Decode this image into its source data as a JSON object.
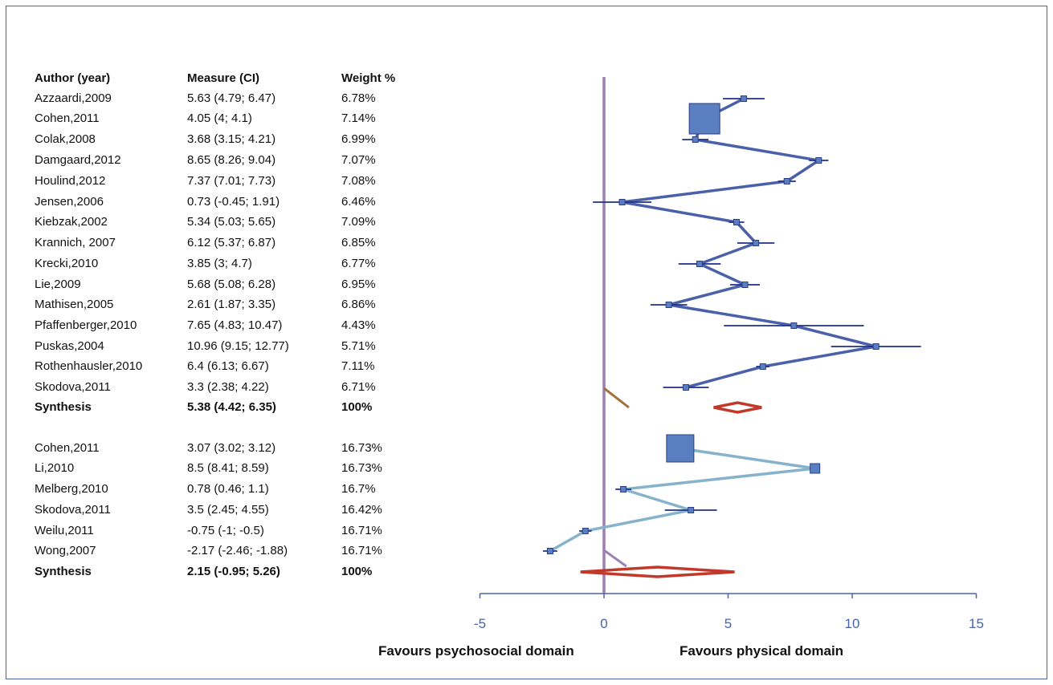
{
  "chart_data": {
    "type": "forest",
    "columns": [
      "Author (year)",
      "Measure (CI)",
      "Weight %"
    ],
    "groups": [
      {
        "studies": [
          {
            "author": "Azzaardi,2009",
            "measure": "5.63 (4.79; 6.47)",
            "weight": "6.78%",
            "est": 5.63,
            "lo": 4.79,
            "hi": 6.47,
            "w": 6.78
          },
          {
            "author": "Cohen,2011",
            "measure": "4.05 (4; 4.1)",
            "weight": "7.14%",
            "est": 4.05,
            "lo": 4,
            "hi": 4.1,
            "w": 7.14
          },
          {
            "author": "Colak,2008",
            "measure": "3.68 (3.15; 4.21)",
            "weight": "6.99%",
            "est": 3.68,
            "lo": 3.15,
            "hi": 4.21,
            "w": 6.99
          },
          {
            "author": "Damgaard,2012",
            "measure": "8.65 (8.26; 9.04)",
            "weight": "7.07%",
            "est": 8.65,
            "lo": 8.26,
            "hi": 9.04,
            "w": 7.07
          },
          {
            "author": "Houlind,2012",
            "measure": "7.37 (7.01; 7.73)",
            "weight": "7.08%",
            "est": 7.37,
            "lo": 7.01,
            "hi": 7.73,
            "w": 7.08
          },
          {
            "author": "Jensen,2006",
            "measure": "0.73 (-0.45; 1.91)",
            "weight": "6.46%",
            "est": 0.73,
            "lo": -0.45,
            "hi": 1.91,
            "w": 6.46
          },
          {
            "author": "Kiebzak,2002",
            "measure": "5.34 (5.03; 5.65)",
            "weight": "7.09%",
            "est": 5.34,
            "lo": 5.03,
            "hi": 5.65,
            "w": 7.09
          },
          {
            "author": "Krannich, 2007",
            "measure": "6.12 (5.37; 6.87)",
            "weight": "6.85%",
            "est": 6.12,
            "lo": 5.37,
            "hi": 6.87,
            "w": 6.85
          },
          {
            "author": "Krecki,2010",
            "measure": "3.85 (3; 4.7)",
            "weight": "6.77%",
            "est": 3.85,
            "lo": 3,
            "hi": 4.7,
            "w": 6.77
          },
          {
            "author": "Lie,2009",
            "measure": "5.68 (5.08; 6.28)",
            "weight": "6.95%",
            "est": 5.68,
            "lo": 5.08,
            "hi": 6.28,
            "w": 6.95
          },
          {
            "author": "Mathisen,2005",
            "measure": "2.61 (1.87; 3.35)",
            "weight": "6.86%",
            "est": 2.61,
            "lo": 1.87,
            "hi": 3.35,
            "w": 6.86
          },
          {
            "author": "Pfaffenberger,2010",
            "measure": "7.65 (4.83; 10.47)",
            "weight": "4.43%",
            "est": 7.65,
            "lo": 4.83,
            "hi": 10.47,
            "w": 4.43
          },
          {
            "author": "Puskas,2004",
            "measure": "10.96 (9.15; 12.77)",
            "weight": "5.71%",
            "est": 10.96,
            "lo": 9.15,
            "hi": 12.77,
            "w": 5.71
          },
          {
            "author": "Rothenhausler,2010",
            "measure": "6.4 (6.13; 6.67)",
            "weight": "7.11%",
            "est": 6.4,
            "lo": 6.13,
            "hi": 6.67,
            "w": 7.11
          },
          {
            "author": "Skodova,2011",
            "measure": "3.3 (2.38; 4.22)",
            "weight": "6.71%",
            "est": 3.3,
            "lo": 2.38,
            "hi": 4.22,
            "w": 6.71
          }
        ],
        "synthesis": {
          "author": "Synthesis",
          "measure": "5.38 (4.42; 6.35)",
          "weight": "100%",
          "est": 5.38,
          "lo": 4.42,
          "hi": 6.35
        }
      },
      {
        "studies": [
          {
            "author": "Cohen,2011",
            "measure": "3.07 (3.02; 3.12)",
            "weight": "16.73%",
            "est": 3.07,
            "lo": 3.02,
            "hi": 3.12,
            "w": 16.73
          },
          {
            "author": "Li,2010",
            "measure": "8.5 (8.41; 8.59)",
            "weight": "16.73%",
            "est": 8.5,
            "lo": 8.41,
            "hi": 8.59,
            "w": 16.73
          },
          {
            "author": "Melberg,2010",
            "measure": "0.78 (0.46; 1.1)",
            "weight": "16.7%",
            "est": 0.78,
            "lo": 0.46,
            "hi": 1.1,
            "w": 16.7
          },
          {
            "author": "Skodova,2011",
            "measure": "3.5 (2.45; 4.55)",
            "weight": "16.42%",
            "est": 3.5,
            "lo": 2.45,
            "hi": 4.55,
            "w": 16.42
          },
          {
            "author": "Weilu,2011",
            "measure": "-0.75 (-1; -0.5)",
            "weight": "16.71%",
            "est": -0.75,
            "lo": -1,
            "hi": -0.5,
            "w": 16.71
          },
          {
            "author": "Wong,2007",
            "measure": "-2.17 (-2.46; -1.88)",
            "weight": "16.71%",
            "est": -2.17,
            "lo": -2.46,
            "hi": -1.88,
            "w": 16.71
          }
        ],
        "synthesis": {
          "author": "Synthesis",
          "measure": "2.15 (-0.95; 5.26)",
          "weight": "100%",
          "est": 2.15,
          "lo": -0.95,
          "hi": 5.26
        }
      }
    ],
    "xlim": [
      -5,
      15
    ],
    "xticks": [
      -5,
      0,
      5,
      10,
      15
    ],
    "left_label": "Favours psychosocial domain",
    "right_label": "Favours physical domain",
    "colors": {
      "group1_line": "#4a60a8",
      "group2_line": "#86b3cb",
      "marker": "#5a7fc0",
      "ci": "#1f2f8c",
      "diamond": "#c0392b",
      "null_line": "#9b7fb5",
      "axis": "#4a63a8",
      "connector": "#a0703a"
    }
  }
}
